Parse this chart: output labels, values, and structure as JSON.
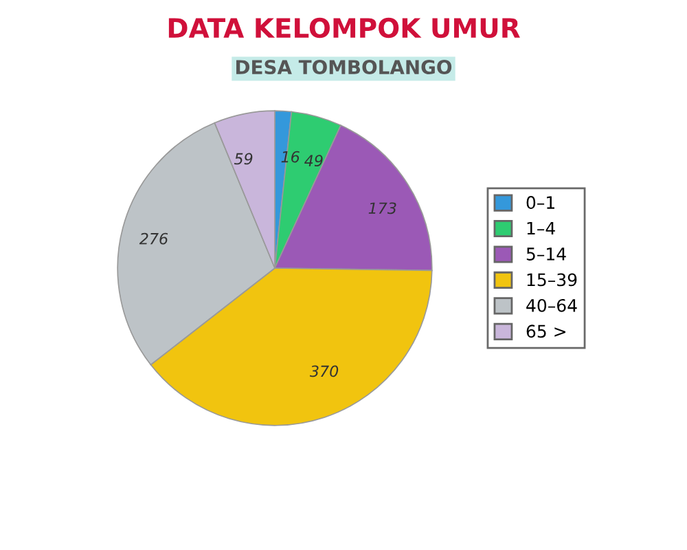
{
  "chart_data": {
    "type": "pie",
    "title": "DATA KELOMPOK UMUR",
    "subtitle": "DESA TOMBOLANGO",
    "categories": [
      "0–1",
      "1–4",
      "5–14",
      "15–39",
      "40–64",
      "65 >"
    ],
    "values": [
      16,
      49,
      173,
      370,
      276,
      59
    ],
    "colors": [
      "#3498db",
      "#2ecc71",
      "#9b59b6",
      "#f1c40f",
      "#bdc3c7",
      "#c9b6db"
    ],
    "data_labels": true,
    "legend": "right"
  }
}
